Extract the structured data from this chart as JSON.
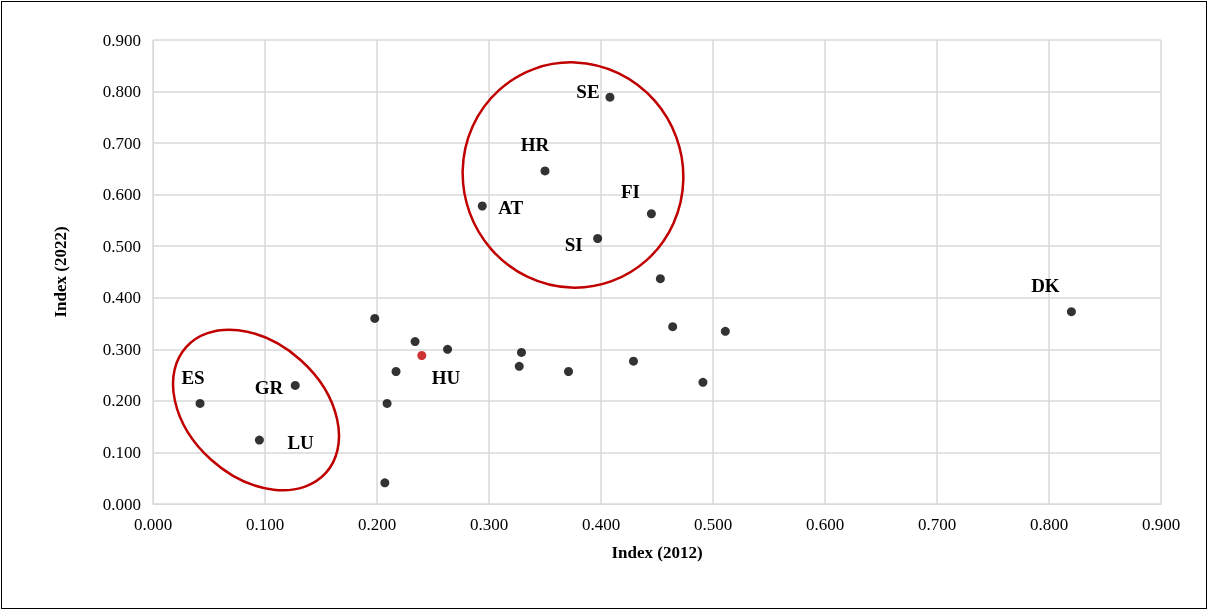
{
  "chart_data": {
    "type": "scatter",
    "xlabel": "Index (2012)",
    "ylabel": "Index (2022)",
    "x": [
      0.042,
      0.127,
      0.095,
      0.198,
      0.234,
      0.24,
      0.263,
      0.217,
      0.209,
      0.207,
      0.329,
      0.327,
      0.371,
      0.429,
      0.464,
      0.511,
      0.491,
      0.453,
      0.82,
      0.408,
      0.35,
      0.294,
      0.445,
      0.397
    ],
    "values": [
      0.195,
      0.23,
      0.124,
      0.36,
      0.315,
      0.288,
      0.3,
      0.257,
      0.195,
      0.041,
      0.294,
      0.267,
      0.257,
      0.277,
      0.344,
      0.335,
      0.236,
      0.437,
      0.373,
      0.789,
      0.646,
      0.578,
      0.563,
      0.515
    ],
    "colors": [
      "#000000",
      "#000000",
      "#000000",
      "#000000",
      "#000000",
      "#c00000",
      "#000000",
      "#000000",
      "#000000",
      "#000000",
      "#000000",
      "#000000",
      "#000000",
      "#000000",
      "#000000",
      "#000000",
      "#000000",
      "#000000",
      "#000000",
      "#000000",
      "#000000",
      "#000000",
      "#000000",
      "#000000"
    ],
    "xlim": [
      0,
      0.9
    ],
    "xticks": [
      {
        "value": 0,
        "label": "0.000"
      },
      {
        "value": 0.1,
        "label": "0.100"
      },
      {
        "value": 0.2,
        "label": "0.200"
      },
      {
        "value": 0.3,
        "label": "0.300"
      },
      {
        "value": 0.4,
        "label": "0.400"
      },
      {
        "value": 0.5,
        "label": "0.500"
      },
      {
        "value": 0.6,
        "label": "0.600"
      },
      {
        "value": 0.7,
        "label": "0.700"
      },
      {
        "value": 0.8,
        "label": "0.800"
      },
      {
        "value": 0.9,
        "label": "0.900"
      }
    ],
    "ylim": [
      0,
      0.9
    ],
    "yticks": [
      {
        "value": 0,
        "label": "0.000"
      },
      {
        "value": 0.1,
        "label": "0.100"
      },
      {
        "value": 0.2,
        "label": "0.200"
      },
      {
        "value": 0.3,
        "label": "0.300"
      },
      {
        "value": 0.4,
        "label": "0.400"
      },
      {
        "value": 0.5,
        "label": "0.500"
      },
      {
        "value": 0.6,
        "label": "0.600"
      },
      {
        "value": 0.7,
        "label": "0.700"
      },
      {
        "value": 0.8,
        "label": "0.800"
      },
      {
        "value": 0.9,
        "label": "0.900"
      }
    ],
    "annotations": [
      {
        "text": "ES",
        "x": 0.042,
        "y": 0.195
      },
      {
        "text": "GR",
        "x": 0.127,
        "y": 0.23
      },
      {
        "text": "LU",
        "x": 0.095,
        "y": 0.124
      },
      {
        "text": "HU",
        "x": 0.24,
        "y": 0.288
      },
      {
        "text": "DK",
        "x": 0.82,
        "y": 0.373
      },
      {
        "text": "SE",
        "x": 0.408,
        "y": 0.789
      },
      {
        "text": "HR",
        "x": 0.35,
        "y": 0.646
      },
      {
        "text": "AT",
        "x": 0.294,
        "y": 0.578
      },
      {
        "text": "FI",
        "x": 0.445,
        "y": 0.563
      },
      {
        "text": "SI",
        "x": 0.397,
        "y": 0.515
      }
    ],
    "grid": true,
    "marker": "circle"
  }
}
